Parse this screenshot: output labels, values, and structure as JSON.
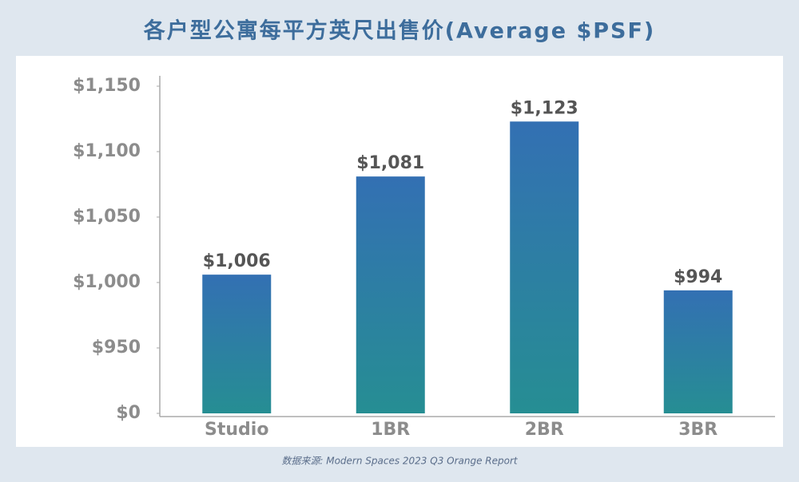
{
  "chart_data": {
    "type": "bar",
    "title": "各户型公寓每平方英尺出售价(Average $PSF)",
    "categories": [
      "Studio",
      "1BR",
      "2BR",
      "3BR"
    ],
    "values": [
      1006,
      1081,
      1123,
      994
    ],
    "value_labels": [
      "$1,006",
      "$1,081",
      "$1,123",
      "$994"
    ],
    "color": "#3370b3",
    "ylim": [
      0,
      1150
    ],
    "yticks": [
      {
        "value": 0,
        "label": "$0"
      },
      {
        "value": 950,
        "label": "$950"
      },
      {
        "value": 1000,
        "label": "$1,000"
      },
      {
        "value": 1050,
        "label": "$1,050"
      },
      {
        "value": 1100,
        "label": "$1,100"
      },
      {
        "value": 1150,
        "label": "$1,150"
      }
    ],
    "source": "数据来源: Modern Spaces 2023 Q3 Orange Report"
  }
}
